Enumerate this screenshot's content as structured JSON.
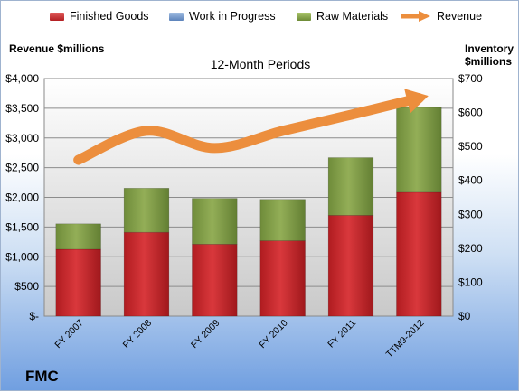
{
  "company": "FMC",
  "colors": {
    "finished_goods": "#c3272b",
    "work_in_progress": "#6f95c7",
    "raw_materials": "#86a24a",
    "revenue": "#ec8e3d"
  },
  "chart_data": {
    "type": "bar",
    "title": "12-Month Periods",
    "ylabel_left": "Revenue $millions",
    "ylabel_right": "Inventory $millions",
    "categories": [
      "FY 2007",
      "FY 2008",
      "FY 2009",
      "FY 2010",
      "FY 2011",
      "TTM9-2012"
    ],
    "stacked": true,
    "left_axis": {
      "ylim": [
        0,
        4000
      ],
      "ticks": [
        0,
        500,
        1000,
        1500,
        2000,
        2500,
        3000,
        3500,
        4000
      ],
      "tick_labels": [
        "$-",
        "$500",
        "$1,000",
        "$1,500",
        "$2,000",
        "$2,500",
        "$3,000",
        "$3,500",
        "$4,000"
      ]
    },
    "right_axis": {
      "ylim": [
        0,
        700
      ],
      "ticks": [
        0,
        100,
        200,
        300,
        400,
        500,
        600,
        700
      ],
      "tick_labels": [
        "$0",
        "$100",
        "$200",
        "$300",
        "$400",
        "$500",
        "$600",
        "$700"
      ]
    },
    "series": [
      {
        "name": "Finished Goods",
        "kind": "bar",
        "axis": "right",
        "values": [
          197,
          247,
          212,
          222,
          297,
          365
        ]
      },
      {
        "name": "Work in Progress",
        "kind": "bar",
        "axis": "right",
        "values": [
          0,
          0,
          0,
          0,
          0,
          0
        ]
      },
      {
        "name": "Raw Materials",
        "kind": "bar",
        "axis": "right",
        "values": [
          75,
          130,
          135,
          122,
          170,
          250
        ]
      },
      {
        "name": "Revenue",
        "kind": "line",
        "axis": "left",
        "values": [
          2630,
          3120,
          2830,
          3120,
          3390,
          3670
        ]
      }
    ],
    "legend": {
      "position": "top",
      "labels": [
        "Finished Goods",
        "Work in Progress",
        "Raw Materials",
        "Revenue"
      ]
    },
    "grid": true
  }
}
